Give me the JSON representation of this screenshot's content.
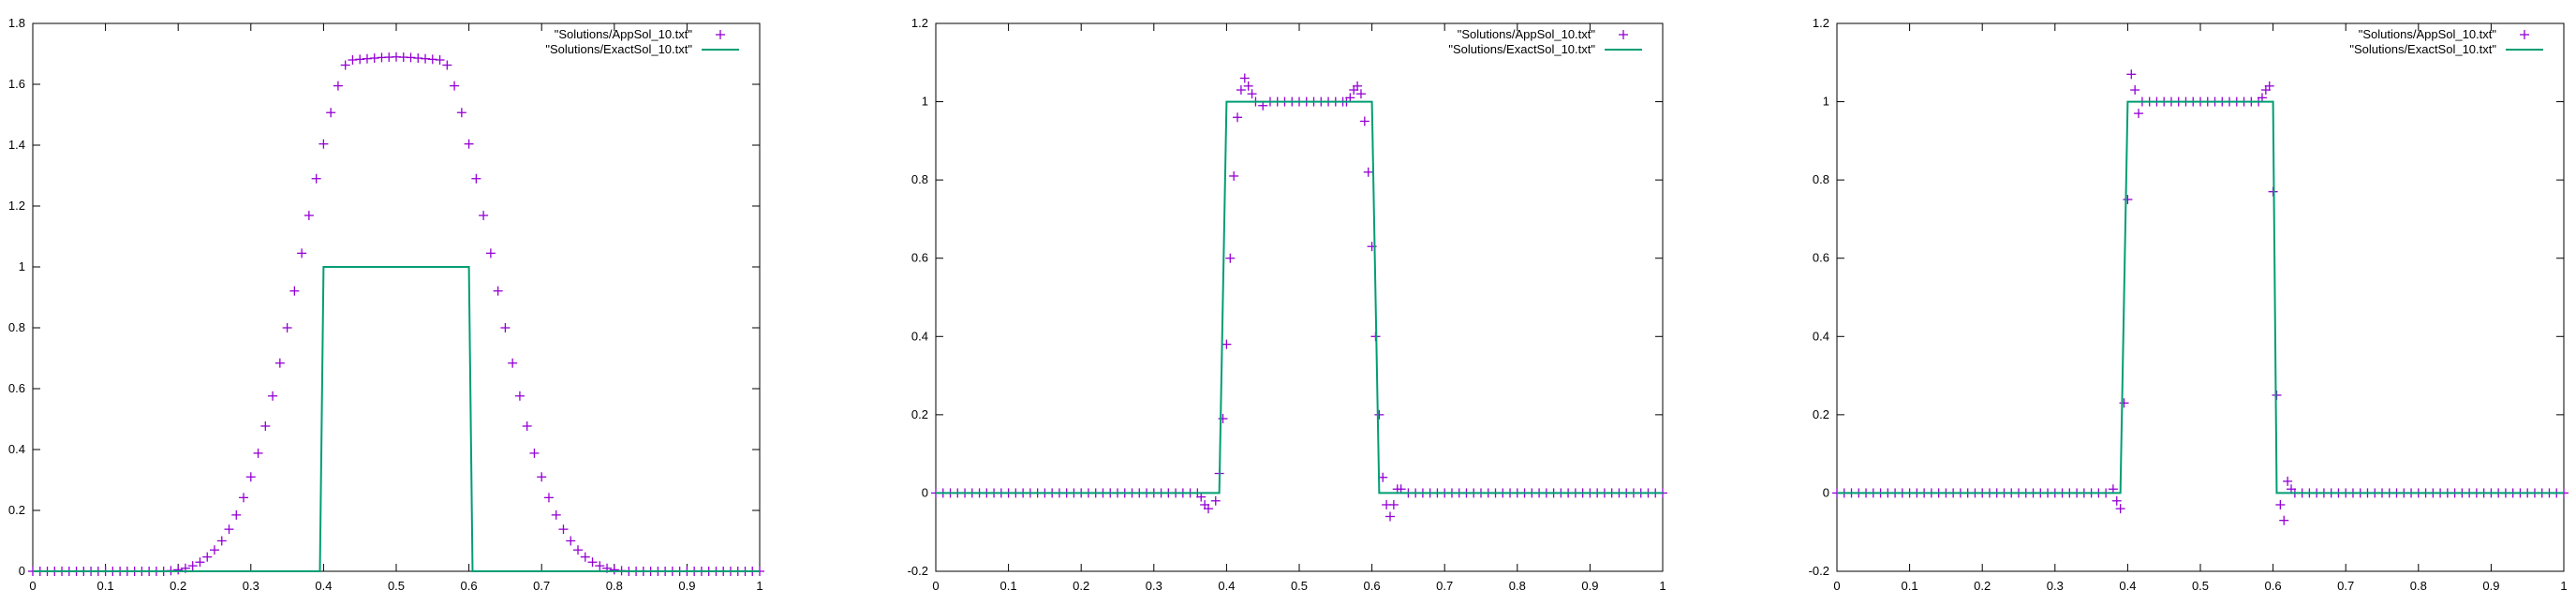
{
  "colors": {
    "approx": "#9400d3",
    "exact": "#009e73",
    "axis": "#000000"
  },
  "chart_data": [
    {
      "type": "line",
      "title": "",
      "xlabel": "",
      "ylabel": "",
      "xlim": [
        0,
        1
      ],
      "ylim": [
        0,
        1.8
      ],
      "xticks": [
        0,
        0.1,
        0.2,
        0.3,
        0.4,
        0.5,
        0.6,
        0.7,
        0.8,
        0.9,
        1
      ],
      "xtick_labels": [
        "0",
        "0.1",
        "0.2",
        "0.3",
        "0.4",
        "0.5",
        "0.6",
        "0.7",
        "0.8",
        "0.9",
        "1"
      ],
      "yticks": [
        0,
        0.2,
        0.4,
        0.6,
        0.8,
        1,
        1.2,
        1.4,
        1.6,
        1.8
      ],
      "ytick_labels": [
        "0",
        "0.2",
        "0.4",
        "0.6",
        "0.8",
        "1",
        "1.2",
        "1.4",
        "1.6",
        "1.8"
      ],
      "grid": false,
      "legend_position": "top-right",
      "series": [
        {
          "name": "\"Solutions/AppSol_10.txt\"",
          "style": "points",
          "x": [
            0.0,
            0.01,
            0.02,
            0.03,
            0.04,
            0.05,
            0.06,
            0.07,
            0.08,
            0.09,
            0.1,
            0.11,
            0.12,
            0.13,
            0.14,
            0.15,
            0.16,
            0.17,
            0.18,
            0.19,
            0.2,
            0.21,
            0.22,
            0.23,
            0.24,
            0.25,
            0.26,
            0.27,
            0.28,
            0.29,
            0.3,
            0.31,
            0.32,
            0.33,
            0.34,
            0.35,
            0.36,
            0.37,
            0.38,
            0.39,
            0.4,
            0.41,
            0.42,
            0.43,
            0.44,
            0.45,
            0.46,
            0.47,
            0.48,
            0.49,
            0.5,
            0.51,
            0.52,
            0.53,
            0.54,
            0.55,
            0.56,
            0.57,
            0.58,
            0.59,
            0.6,
            0.61,
            0.62,
            0.63,
            0.64,
            0.65,
            0.66,
            0.67,
            0.68,
            0.69,
            0.7,
            0.71,
            0.72,
            0.73,
            0.74,
            0.75,
            0.76,
            0.77,
            0.78,
            0.79,
            0.8,
            0.81,
            0.82,
            0.83,
            0.84,
            0.85,
            0.86,
            0.87,
            0.88,
            0.89,
            0.9,
            0.91,
            0.92,
            0.93,
            0.94,
            0.95,
            0.96,
            0.97,
            0.98,
            0.99,
            1.0
          ],
          "y": [
            0.0,
            0.0,
            0.0,
            0.0,
            0.0,
            0.0,
            0.0,
            0.0,
            0.0,
            0.0,
            0.0,
            0.0,
            0.0,
            0.0,
            0.0,
            0.0,
            0.0,
            0.0,
            0.0,
            0.002,
            0.005,
            0.01,
            0.018,
            0.03,
            0.047,
            0.07,
            0.1,
            0.138,
            0.185,
            0.242,
            0.31,
            0.388,
            0.477,
            0.576,
            0.684,
            0.8,
            0.921,
            1.045,
            1.169,
            1.29,
            1.404,
            1.507,
            1.595,
            1.663,
            1.68,
            1.682,
            1.684,
            1.686,
            1.688,
            1.689,
            1.69,
            1.689,
            1.688,
            1.686,
            1.684,
            1.682,
            1.68,
            1.663,
            1.595,
            1.507,
            1.404,
            1.29,
            1.169,
            1.045,
            0.921,
            0.8,
            0.684,
            0.576,
            0.477,
            0.388,
            0.31,
            0.242,
            0.185,
            0.138,
            0.1,
            0.07,
            0.047,
            0.03,
            0.018,
            0.01,
            0.005,
            0.002,
            0.0,
            0.0,
            0.0,
            0.0,
            0.0,
            0.0,
            0.0,
            0.0,
            0.0,
            0.0,
            0.0,
            0.0,
            0.0,
            0.0,
            0.0,
            0.0,
            0.0,
            0.0,
            0.0
          ]
        },
        {
          "name": "\"Solutions/ExactSol_10.txt\"",
          "style": "line",
          "x": [
            0,
            0.395,
            0.4,
            0.6,
            0.605,
            1
          ],
          "y": [
            0,
            0,
            1,
            1,
            0,
            0
          ]
        }
      ]
    },
    {
      "type": "line",
      "title": "",
      "xlabel": "",
      "ylabel": "",
      "xlim": [
        0,
        1
      ],
      "ylim": [
        -0.2,
        1.2
      ],
      "xticks": [
        0,
        0.1,
        0.2,
        0.3,
        0.4,
        0.5,
        0.6,
        0.7,
        0.8,
        0.9,
        1
      ],
      "xtick_labels": [
        "0",
        "0.1",
        "0.2",
        "0.3",
        "0.4",
        "0.5",
        "0.6",
        "0.7",
        "0.8",
        "0.9",
        "1"
      ],
      "yticks": [
        -0.2,
        0,
        0.2,
        0.4,
        0.6,
        0.8,
        1,
        1.2
      ],
      "ytick_labels": [
        "-0.2",
        "0",
        "0.2",
        "0.4",
        "0.6",
        "0.8",
        "1",
        "1.2"
      ],
      "grid": false,
      "legend_position": "top-right",
      "series": [
        {
          "name": "\"Solutions/AppSol_10.txt\"",
          "style": "points",
          "x": [
            0.0,
            0.01,
            0.02,
            0.03,
            0.04,
            0.05,
            0.06,
            0.07,
            0.08,
            0.09,
            0.1,
            0.11,
            0.12,
            0.13,
            0.14,
            0.15,
            0.16,
            0.17,
            0.18,
            0.19,
            0.2,
            0.21,
            0.22,
            0.23,
            0.24,
            0.25,
            0.26,
            0.27,
            0.28,
            0.29,
            0.3,
            0.31,
            0.32,
            0.33,
            0.34,
            0.35,
            0.36,
            0.365,
            0.37,
            0.375,
            0.385,
            0.39,
            0.395,
            0.4,
            0.405,
            0.41,
            0.415,
            0.42,
            0.425,
            0.43,
            0.435,
            0.44,
            0.45,
            0.46,
            0.47,
            0.48,
            0.49,
            0.5,
            0.51,
            0.52,
            0.53,
            0.54,
            0.55,
            0.56,
            0.565,
            0.57,
            0.575,
            0.58,
            0.585,
            0.59,
            0.595,
            0.6,
            0.605,
            0.61,
            0.615,
            0.62,
            0.625,
            0.63,
            0.635,
            0.64,
            0.65,
            0.66,
            0.67,
            0.68,
            0.69,
            0.7,
            0.71,
            0.72,
            0.73,
            0.74,
            0.75,
            0.76,
            0.77,
            0.78,
            0.79,
            0.8,
            0.81,
            0.82,
            0.83,
            0.84,
            0.85,
            0.86,
            0.87,
            0.88,
            0.89,
            0.9,
            0.91,
            0.92,
            0.93,
            0.94,
            0.95,
            0.96,
            0.97,
            0.98,
            0.99,
            1.0
          ],
          "y": [
            0,
            0,
            0,
            0,
            0,
            0,
            0,
            0,
            0,
            0,
            0,
            0,
            0,
            0,
            0,
            0,
            0,
            0,
            0,
            0,
            0,
            0,
            0,
            0,
            0,
            0,
            0,
            0,
            0,
            0,
            0,
            0,
            0,
            0,
            0,
            0,
            0,
            -0.01,
            -0.03,
            -0.04,
            -0.02,
            0.05,
            0.19,
            0.38,
            0.6,
            0.81,
            0.96,
            1.03,
            1.06,
            1.04,
            1.02,
            1.0,
            0.99,
            1.0,
            1.0,
            1.0,
            1.0,
            1.0,
            1.0,
            1.0,
            1.0,
            1.0,
            1.0,
            1.0,
            1.0,
            1.01,
            1.03,
            1.04,
            1.02,
            0.95,
            0.82,
            0.63,
            0.4,
            0.2,
            0.04,
            -0.03,
            -0.06,
            -0.03,
            0.01,
            0.01,
            0,
            0,
            0,
            0,
            0,
            0,
            0,
            0,
            0,
            0,
            0,
            0,
            0,
            0,
            0,
            0,
            0,
            0,
            0,
            0,
            0,
            0,
            0,
            0,
            0,
            0,
            0,
            0,
            0,
            0,
            0,
            0,
            0,
            0,
            0,
            0
          ]
        },
        {
          "name": "\"Solutions/ExactSol_10.txt\"",
          "style": "line",
          "x": [
            0,
            0.39,
            0.4,
            0.6,
            0.61,
            1
          ],
          "y": [
            0,
            0,
            1,
            1,
            0,
            0
          ]
        }
      ]
    },
    {
      "type": "line",
      "title": "",
      "xlabel": "",
      "ylabel": "",
      "xlim": [
        0,
        1
      ],
      "ylim": [
        -0.2,
        1.2
      ],
      "xticks": [
        0,
        0.1,
        0.2,
        0.3,
        0.4,
        0.5,
        0.6,
        0.7,
        0.8,
        0.9,
        1
      ],
      "xtick_labels": [
        "0",
        "0.1",
        "0.2",
        "0.3",
        "0.4",
        "0.5",
        "0.6",
        "0.7",
        "0.8",
        "0.9",
        "1"
      ],
      "yticks": [
        -0.2,
        0,
        0.2,
        0.4,
        0.6,
        0.8,
        1,
        1.2
      ],
      "ytick_labels": [
        "-0.2",
        "0",
        "0.2",
        "0.4",
        "0.6",
        "0.8",
        "1",
        "1.2"
      ],
      "grid": false,
      "legend_position": "top-right",
      "series": [
        {
          "name": "\"Solutions/AppSol_10.txt\"",
          "style": "points",
          "x": [
            0.0,
            0.01,
            0.02,
            0.03,
            0.04,
            0.05,
            0.06,
            0.07,
            0.08,
            0.09,
            0.1,
            0.11,
            0.12,
            0.13,
            0.14,
            0.15,
            0.16,
            0.17,
            0.18,
            0.19,
            0.2,
            0.21,
            0.22,
            0.23,
            0.24,
            0.25,
            0.26,
            0.27,
            0.28,
            0.29,
            0.3,
            0.31,
            0.32,
            0.33,
            0.34,
            0.35,
            0.36,
            0.37,
            0.38,
            0.385,
            0.39,
            0.395,
            0.4,
            0.405,
            0.41,
            0.415,
            0.42,
            0.43,
            0.44,
            0.45,
            0.46,
            0.47,
            0.48,
            0.49,
            0.5,
            0.51,
            0.52,
            0.53,
            0.54,
            0.55,
            0.56,
            0.57,
            0.58,
            0.585,
            0.59,
            0.595,
            0.6,
            0.605,
            0.61,
            0.615,
            0.62,
            0.625,
            0.63,
            0.64,
            0.65,
            0.66,
            0.67,
            0.68,
            0.69,
            0.7,
            0.71,
            0.72,
            0.73,
            0.74,
            0.75,
            0.76,
            0.77,
            0.78,
            0.79,
            0.8,
            0.81,
            0.82,
            0.83,
            0.84,
            0.85,
            0.86,
            0.87,
            0.88,
            0.89,
            0.9,
            0.91,
            0.92,
            0.93,
            0.94,
            0.95,
            0.96,
            0.97,
            0.98,
            0.99,
            1.0
          ],
          "y": [
            0,
            0,
            0,
            0,
            0,
            0,
            0,
            0,
            0,
            0,
            0,
            0,
            0,
            0,
            0,
            0,
            0,
            0,
            0,
            0,
            0,
            0,
            0,
            0,
            0,
            0,
            0,
            0,
            0,
            0,
            0,
            0,
            0,
            0,
            0,
            0,
            0,
            0,
            0.01,
            -0.02,
            -0.04,
            0.23,
            0.75,
            1.07,
            1.03,
            0.97,
            1.0,
            1.0,
            1.0,
            1.0,
            1.0,
            1.0,
            1.0,
            1.0,
            1.0,
            1.0,
            1.0,
            1.0,
            1.0,
            1.0,
            1.0,
            1.0,
            1.0,
            1.01,
            1.03,
            1.04,
            0.77,
            0.25,
            -0.03,
            -0.07,
            0.03,
            0.01,
            0,
            0,
            0,
            0,
            0,
            0,
            0,
            0,
            0,
            0,
            0,
            0,
            0,
            0,
            0,
            0,
            0,
            0,
            0,
            0,
            0,
            0,
            0,
            0,
            0,
            0,
            0,
            0,
            0,
            0,
            0,
            0,
            0,
            0,
            0,
            0,
            0,
            0
          ]
        },
        {
          "name": "\"Solutions/ExactSol_10.txt\"",
          "style": "line",
          "x": [
            0,
            0.39,
            0.4,
            0.6,
            0.605,
            1
          ],
          "y": [
            0,
            0,
            1,
            1,
            0,
            0
          ]
        }
      ]
    }
  ]
}
